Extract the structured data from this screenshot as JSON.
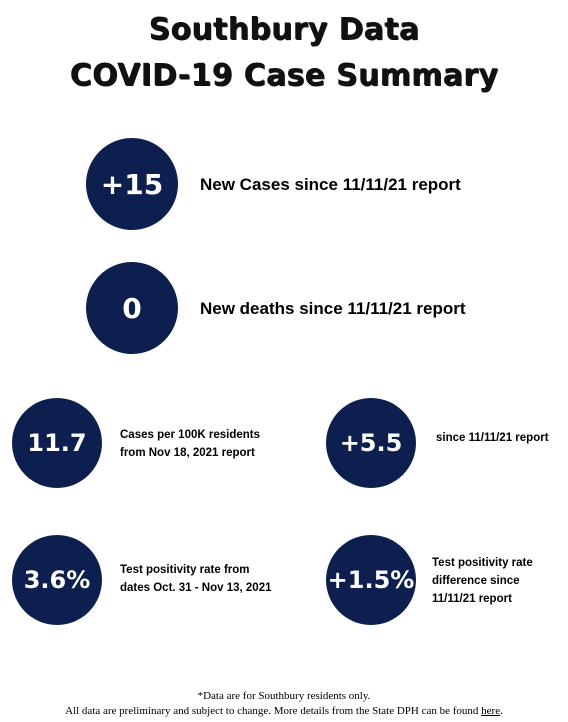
{
  "title": {
    "line1": "Southbury Data",
    "line2": "COVID-19 Case Summary"
  },
  "stats": {
    "new_cases": {
      "value": "+15",
      "label": "New Cases since 11/11/21 report"
    },
    "new_deaths": {
      "value": "0",
      "label": "New deaths since 11/11/21 report"
    },
    "cases_per_100k": {
      "value": "11.7",
      "label_line1": "Cases per 100K residents",
      "label_line2": "from Nov 18, 2021 report"
    },
    "cases_change": {
      "value": "+5.5",
      "label": "since 11/11/21 report"
    },
    "positivity": {
      "value": "3.6%",
      "label_line1": "Test positivity rate from",
      "label_line2": "dates Oct. 31 - Nov 13, 2021"
    },
    "positivity_change": {
      "value": "+1.5%",
      "label_line1": "Test positivity rate",
      "label_line2": "difference since",
      "label_line3": "11/11/21 report"
    }
  },
  "footer": {
    "line1": "*Data are for Southbury residents only.",
    "line2_text": "All data are preliminary and subject to change. More details from the State DPH can be found ",
    "link_text": "here",
    "line2_end": "."
  },
  "colors": {
    "circle": "#0d1f4e",
    "circle_text": "#ffffff"
  }
}
